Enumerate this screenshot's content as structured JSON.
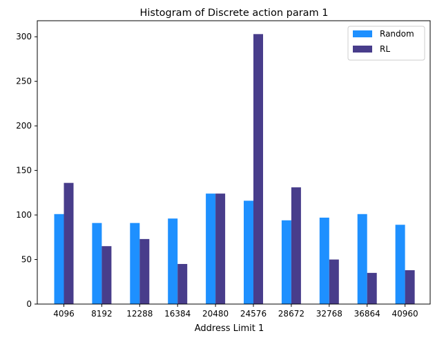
{
  "chart_data": {
    "type": "bar",
    "title": "Histogram of Discrete action param 1",
    "xlabel": "Address Limit 1",
    "ylabel": "",
    "categories": [
      "4096",
      "8192",
      "12288",
      "16384",
      "20480",
      "24576",
      "28672",
      "32768",
      "36864",
      "40960"
    ],
    "series": [
      {
        "name": "Random",
        "color": "#1e90ff",
        "values": [
          101,
          91,
          91,
          96,
          124,
          116,
          94,
          97,
          101,
          89
        ]
      },
      {
        "name": "RL",
        "color": "#483d8b",
        "values": [
          136,
          65,
          73,
          45,
          124,
          303,
          131,
          50,
          35,
          38
        ]
      }
    ],
    "ylim": [
      0,
      318
    ],
    "yticks": [
      0,
      50,
      100,
      150,
      200,
      250,
      300
    ],
    "grid": false,
    "legend_position": "top-right"
  }
}
